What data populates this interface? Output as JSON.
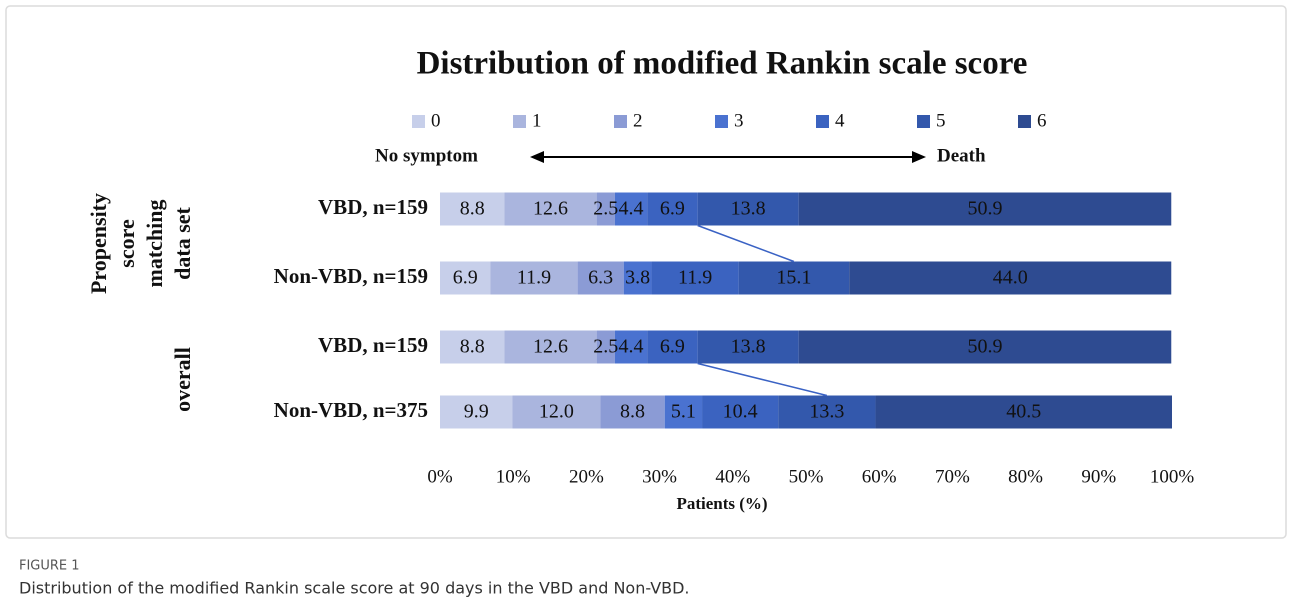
{
  "chart_data": {
    "type": "stacked_barh",
    "title": "Distribution of modified Rankin scale score",
    "categories": [
      "VBD, n=159",
      "Non-VBD, n=159",
      "VBD, n=159",
      "Non-VBD, n=375"
    ],
    "groups": [
      {
        "lines": [
          "Propensity",
          "score",
          "matching",
          "data set"
        ],
        "rows": [
          0,
          1
        ]
      },
      {
        "lines": [
          "overall"
        ],
        "rows": [
          2,
          3
        ]
      }
    ],
    "series": [
      {
        "name": "0",
        "color": "#c7cfea",
        "values": [
          8.8,
          6.9,
          8.8,
          9.9
        ],
        "value_labels": [
          "8.8",
          "6.9",
          "8.8",
          "9.9"
        ]
      },
      {
        "name": "1",
        "color": "#aab5de",
        "values": [
          12.6,
          11.9,
          12.6,
          12.0
        ],
        "value_labels": [
          "12.6",
          "11.9",
          "12.6",
          "12.0"
        ]
      },
      {
        "name": "2",
        "color": "#8b9bd5",
        "values": [
          2.5,
          6.3,
          2.5,
          8.8
        ],
        "value_labels": [
          "2.5",
          "6.3",
          "2.5",
          "8.8"
        ]
      },
      {
        "name": "3",
        "color": "#4a72d0",
        "values": [
          4.4,
          3.8,
          4.4,
          5.1
        ],
        "value_labels": [
          "4.4",
          "3.8",
          "4.4",
          "5.1"
        ]
      },
      {
        "name": "4",
        "color": "#3b63c0",
        "values": [
          6.9,
          11.9,
          6.9,
          10.4
        ],
        "value_labels": [
          "6.9",
          "11.9",
          "6.9",
          "10.4"
        ]
      },
      {
        "name": "5",
        "color": "#3358ac",
        "values": [
          13.8,
          15.1,
          13.8,
          13.3
        ],
        "value_labels": [
          "13.8",
          "15.1",
          "13.8",
          "13.3"
        ]
      },
      {
        "name": "6",
        "color": "#2e4b91",
        "values": [
          50.9,
          44.0,
          50.9,
          40.5
        ],
        "value_labels": [
          "50.9",
          "44.0",
          "50.9",
          "40.5"
        ]
      }
    ],
    "annotations": {
      "left": "No symptom",
      "right": "Death"
    },
    "xlabel": "Patients (%)",
    "xlim": [
      0,
      100
    ],
    "xticks": [
      {
        "value": 0,
        "label": "0%"
      },
      {
        "value": 10,
        "label": "10%"
      },
      {
        "value": 20,
        "label": "20%"
      },
      {
        "value": 30,
        "label": "30%"
      },
      {
        "value": 40,
        "label": "40%"
      },
      {
        "value": 50,
        "label": "50%"
      },
      {
        "value": 60,
        "label": "60%"
      },
      {
        "value": 70,
        "label": "70%"
      },
      {
        "value": 80,
        "label": "80%"
      },
      {
        "value": 90,
        "label": "90%"
      },
      {
        "value": 100,
        "label": "100%"
      }
    ],
    "grid": false
  },
  "caption": {
    "label": "FIGURE 1",
    "text": "Distribution of the modified Rankin scale score at 90 days in the VBD and Non-VBD."
  }
}
